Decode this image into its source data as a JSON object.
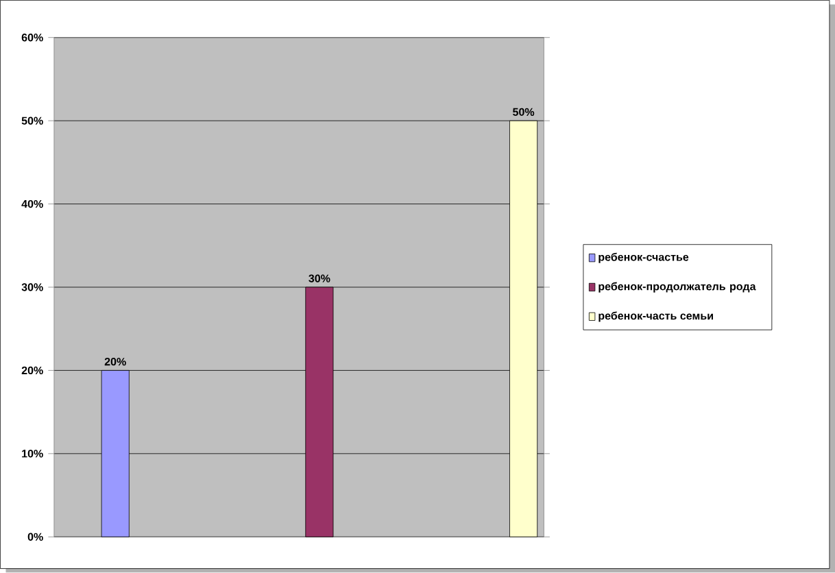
{
  "chart_data": {
    "type": "bar",
    "categories": [
      null,
      null,
      null
    ],
    "series": [
      {
        "name": "ребенок-счастье",
        "color": "#9999ff",
        "values": [
          20,
          null,
          null
        ],
        "value_labels": [
          "20%",
          null,
          null
        ]
      },
      {
        "name": "ребенок-продолжатель рода",
        "color": "#993366",
        "values": [
          null,
          30,
          null
        ],
        "value_labels": [
          null,
          "30%",
          null
        ]
      },
      {
        "name": "ребенок-часть семьи",
        "color": "#ffffcc",
        "values": [
          null,
          null,
          50
        ],
        "value_labels": [
          null,
          null,
          "50%"
        ]
      }
    ],
    "ylim": [
      0,
      60
    ],
    "yticks": [
      {
        "value": 0,
        "label": "0%"
      },
      {
        "value": 10,
        "label": "10%"
      },
      {
        "value": 20,
        "label": "20%"
      },
      {
        "value": 30,
        "label": "30%"
      },
      {
        "value": 40,
        "label": "40%"
      },
      {
        "value": 50,
        "label": "50%"
      },
      {
        "value": 60,
        "label": "60%"
      }
    ],
    "grid": "y",
    "legend": "right"
  }
}
